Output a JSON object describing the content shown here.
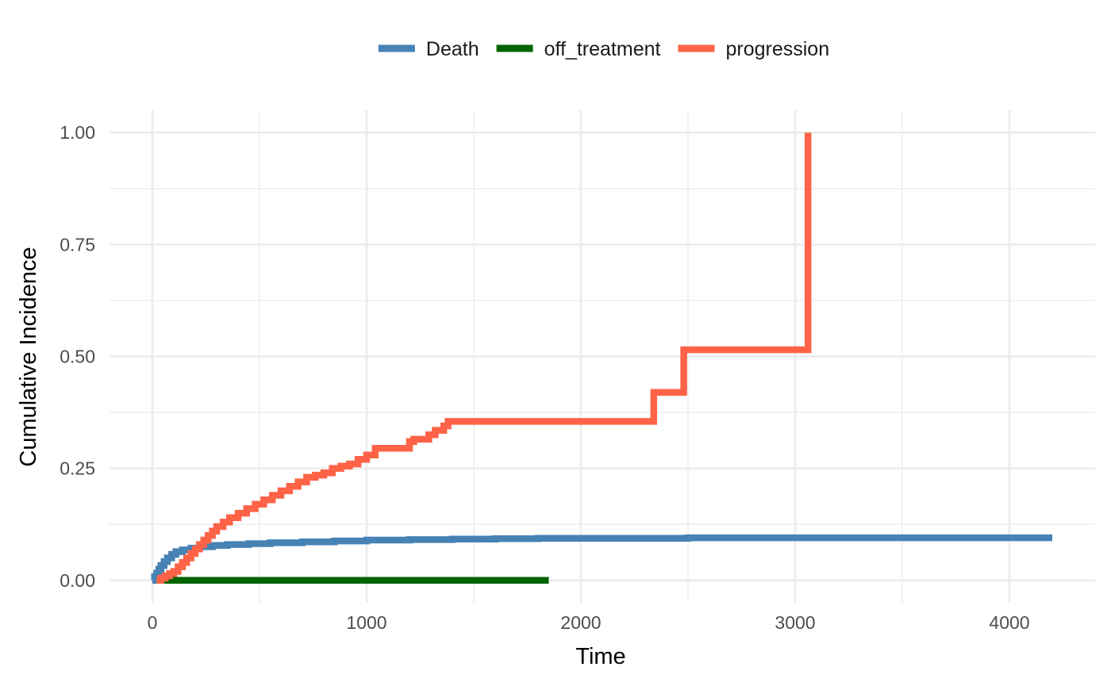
{
  "chart_data": {
    "type": "line",
    "step": true,
    "xlabel": "Time",
    "ylabel": "Cumulative Incidence",
    "xlim": [
      -200,
      4400
    ],
    "ylim": [
      -0.05,
      1.05
    ],
    "xticks": [
      0,
      1000,
      2000,
      3000,
      4000
    ],
    "xtick_labels": [
      "0",
      "1000",
      "2000",
      "3000",
      "4000"
    ],
    "xminor": [
      500,
      1500,
      2500,
      3500
    ],
    "yticks": [
      0,
      0.25,
      0.5,
      0.75,
      1
    ],
    "ytick_labels": [
      "0.00",
      "0.25",
      "0.50",
      "0.75",
      "1.00"
    ],
    "yminor": [
      0.125,
      0.375,
      0.625,
      0.875
    ],
    "grid": true,
    "legend_position": "top",
    "series": [
      {
        "name": "Death",
        "color": "#4682B4",
        "x": [
          0,
          10,
          20,
          30,
          40,
          55,
          70,
          90,
          110,
          140,
          180,
          220,
          280,
          350,
          450,
          550,
          700,
          850,
          1000,
          1200,
          1400,
          1600,
          1800,
          2000,
          2500,
          3000,
          3500,
          4200
        ],
        "y": [
          0,
          0.008,
          0.016,
          0.025,
          0.033,
          0.042,
          0.05,
          0.058,
          0.064,
          0.068,
          0.072,
          0.075,
          0.078,
          0.08,
          0.082,
          0.084,
          0.086,
          0.088,
          0.09,
          0.091,
          0.092,
          0.093,
          0.094,
          0.094,
          0.095,
          0.095,
          0.095,
          0.095
        ]
      },
      {
        "name": "off_treatment",
        "color": "#006400",
        "x": [
          20,
          1850
        ],
        "y": [
          0,
          0
        ]
      },
      {
        "name": "progression",
        "color": "#FF6347",
        "x": [
          20,
          40,
          60,
          80,
          100,
          120,
          140,
          160,
          180,
          200,
          220,
          240,
          260,
          280,
          300,
          330,
          360,
          400,
          440,
          480,
          520,
          560,
          600,
          640,
          680,
          720,
          760,
          800,
          840,
          880,
          920,
          960,
          1000,
          1040,
          1200,
          1220,
          1290,
          1320,
          1360,
          1380,
          2340,
          2480,
          3060,
          3060
        ],
        "y": [
          0,
          0.005,
          0.01,
          0.015,
          0.02,
          0.03,
          0.04,
          0.05,
          0.06,
          0.07,
          0.08,
          0.09,
          0.1,
          0.11,
          0.12,
          0.13,
          0.14,
          0.15,
          0.16,
          0.17,
          0.18,
          0.19,
          0.2,
          0.21,
          0.22,
          0.23,
          0.235,
          0.24,
          0.25,
          0.255,
          0.26,
          0.27,
          0.28,
          0.295,
          0.31,
          0.315,
          0.325,
          0.335,
          0.345,
          0.355,
          0.42,
          0.515,
          0.515,
          1
        ]
      }
    ]
  }
}
